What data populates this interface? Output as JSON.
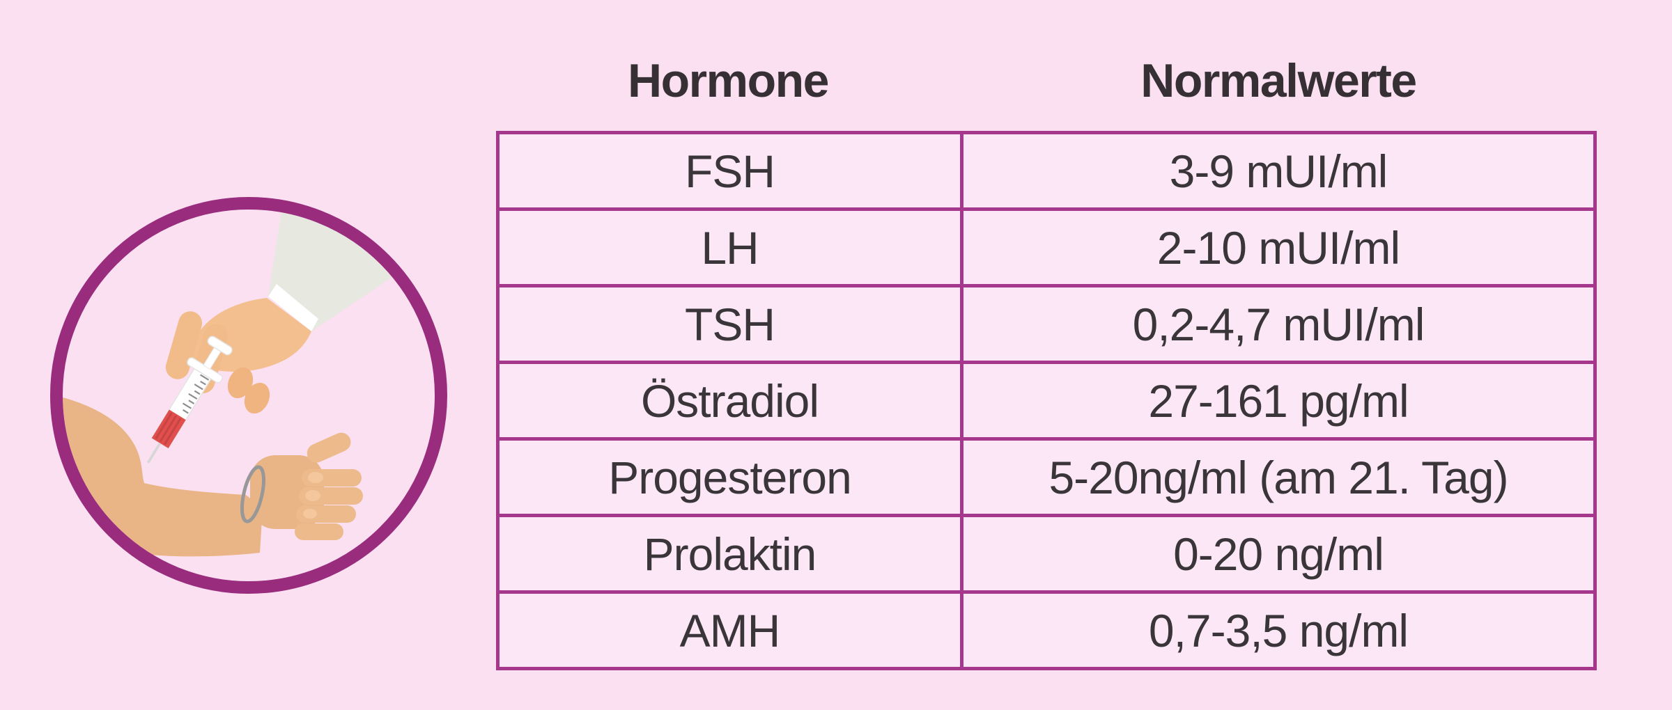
{
  "page": {
    "background_color": "#FAE0F1",
    "language": "de"
  },
  "table": {
    "headers": [
      {
        "label": "Hormone"
      },
      {
        "label": "Normalwerte"
      }
    ],
    "rows": [
      {
        "hormone": "FSH",
        "value": "3-9 mUI/ml"
      },
      {
        "hormone": "LH",
        "value": "2-10 mUI/ml"
      },
      {
        "hormone": "TSH",
        "value": "0,2-4,7 mUI/ml"
      },
      {
        "hormone": "Östradiol",
        "value": "27-161 pg/ml"
      },
      {
        "hormone": "Progesteron",
        "value": "5-20ng/ml (am 21. Tag)"
      },
      {
        "hormone": "Prolaktin",
        "value": "0-20 ng/ml"
      },
      {
        "hormone": "AMH",
        "value": "0,7-3,5 ng/ml"
      }
    ],
    "border_color": "#A5378C",
    "cell_background": "#FCE7F7",
    "text_color": "#3A3539"
  },
  "illustration": {
    "name": "blood-draw-in-circle",
    "description": "Hand in white sleeve holding a syringe with blood above a patient arm wearing a bracelet",
    "ring_color": "#9A2C7D",
    "doctor_skin_color": "#F3BF8E",
    "patient_skin_color": "#EAB586",
    "sleeve_color": "#E7E9E1",
    "cuff_color": "#FFFFFF",
    "blood_color": "#E14E4E",
    "bracelet_color": "#989898"
  },
  "chart_data": {
    "type": "table",
    "title": "Hormone Normalwerte",
    "columns": [
      "Hormone",
      "Normalwerte"
    ],
    "rows": [
      [
        "FSH",
        "3-9 mUI/ml"
      ],
      [
        "LH",
        "2-10 mUI/ml"
      ],
      [
        "TSH",
        "0,2-4,7 mUI/ml"
      ],
      [
        "Östradiol",
        "27-161 pg/ml"
      ],
      [
        "Progesteron",
        "5-20ng/ml (am 21. Tag)"
      ],
      [
        "Prolaktin",
        "0-20 ng/ml"
      ],
      [
        "AMH",
        "0,7-3,5 ng/ml"
      ]
    ]
  }
}
